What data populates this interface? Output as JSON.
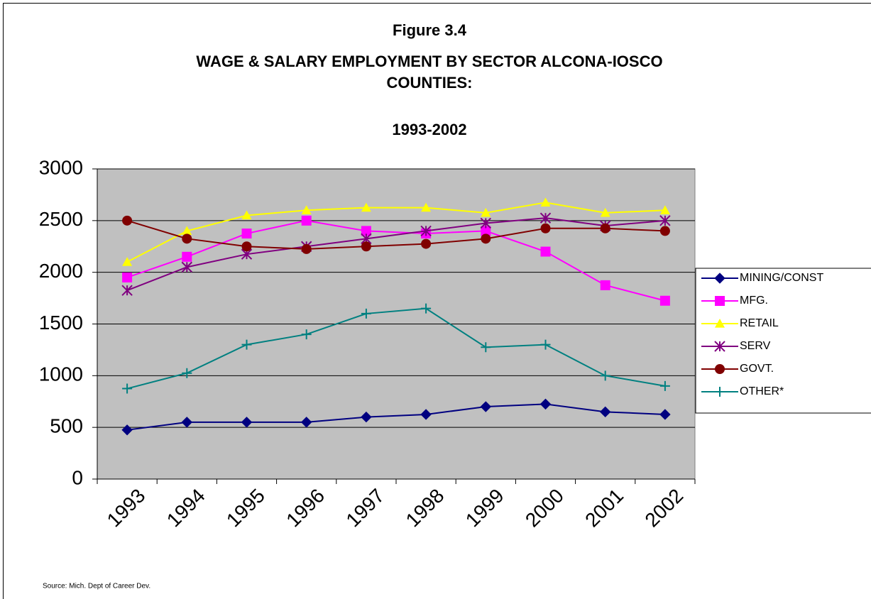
{
  "chart_data": {
    "type": "line",
    "title_lines": [
      "Figure 3.4",
      "WAGE & SALARY EMPLOYMENT BY SECTOR  ALCONA-IOSCO",
      "COUNTIES:",
      "1993-2002"
    ],
    "categories": [
      "1993",
      "1994",
      "1995",
      "1996",
      "1997",
      "1998",
      "1999",
      "2000",
      "2001",
      "2002"
    ],
    "series": [
      {
        "name": "MINING/CONST",
        "color": "#000080",
        "marker": "diamond",
        "values": [
          475,
          550,
          550,
          550,
          600,
          625,
          700,
          725,
          650,
          625
        ]
      },
      {
        "name": "MFG.",
        "color": "#ff00ff",
        "marker": "square",
        "values": [
          1950,
          2150,
          2375,
          2500,
          2400,
          2375,
          2400,
          2200,
          1875,
          1725
        ]
      },
      {
        "name": "RETAIL",
        "color": "#ffff00",
        "marker": "triangle",
        "values": [
          2100,
          2400,
          2550,
          2600,
          2625,
          2625,
          2575,
          2675,
          2575,
          2600
        ]
      },
      {
        "name": "SERV",
        "color": "#800080",
        "marker": "star",
        "values": [
          1825,
          2050,
          2175,
          2250,
          2325,
          2400,
          2475,
          2525,
          2450,
          2500
        ]
      },
      {
        "name": "GOVT.",
        "color": "#800000",
        "marker": "circle",
        "values": [
          2500,
          2325,
          2250,
          2225,
          2250,
          2275,
          2325,
          2425,
          2425,
          2400
        ]
      },
      {
        "name": "OTHER*",
        "color": "#008080",
        "marker": "plus",
        "values": [
          875,
          1025,
          1300,
          1400,
          1600,
          1650,
          1275,
          1300,
          1000,
          900
        ]
      }
    ],
    "ylim": [
      0,
      3000
    ],
    "yticks": [
      0,
      500,
      1000,
      1500,
      2000,
      2500,
      3000
    ],
    "grid": true,
    "plot_background": "#c0c0c0",
    "legend": "right",
    "source": "Source:  Mich. Dept of Career Dev."
  }
}
